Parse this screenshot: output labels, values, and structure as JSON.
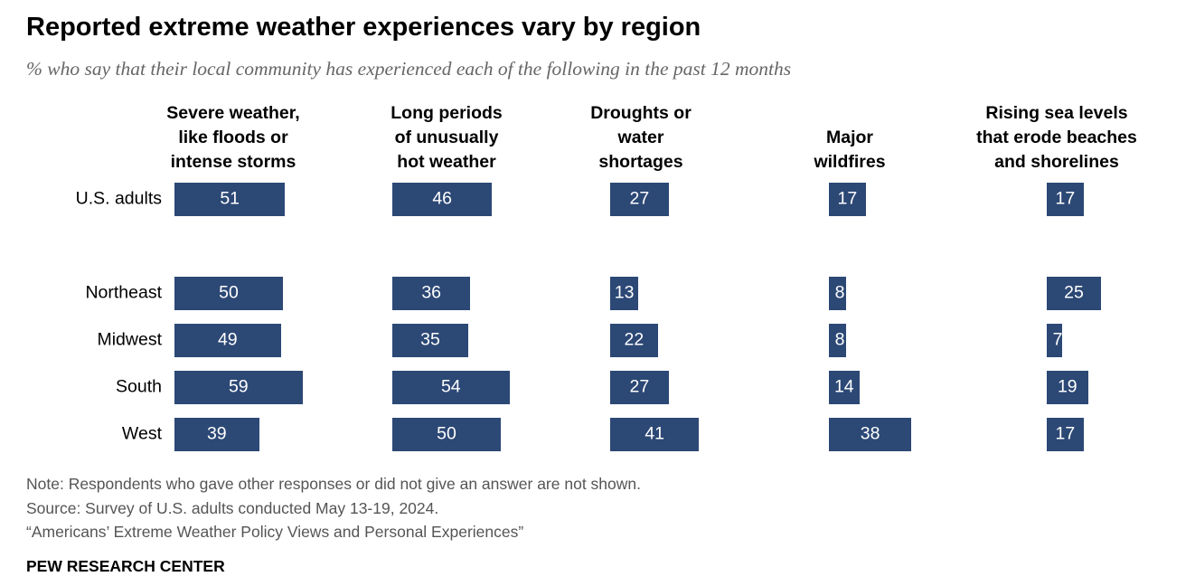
{
  "title": "Reported extreme weather experiences vary by region",
  "subtitle": "% who say that their local community has experienced each of the following in the past 12 months",
  "chart_data": {
    "type": "bar",
    "orientation": "horizontal-small-multiples",
    "categories": [
      "U.S. adults",
      "Northeast",
      "Midwest",
      "South",
      "West"
    ],
    "series": [
      {
        "name": [
          "Severe weather,",
          "like floods or",
          "intense storms"
        ],
        "values": [
          51,
          50,
          49,
          59,
          39
        ]
      },
      {
        "name": [
          "Long periods",
          "of unusually",
          "hot weather"
        ],
        "values": [
          46,
          36,
          35,
          54,
          50
        ]
      },
      {
        "name": [
          "Droughts or",
          "water",
          "shortages"
        ],
        "values": [
          27,
          13,
          22,
          27,
          41
        ]
      },
      {
        "name": [
          "Major",
          "wildfires"
        ],
        "values": [
          17,
          8,
          8,
          14,
          38
        ]
      },
      {
        "name": [
          "Rising sea levels",
          "that erode beaches",
          "and shorelines"
        ],
        "values": [
          17,
          25,
          7,
          19,
          17
        ]
      }
    ],
    "bar_color": "#2c4875",
    "value_label_color": "#ffffff"
  },
  "notes": [
    "Note: Respondents who gave other responses or did not give an answer are not shown.",
    "Source: Survey of U.S. adults conducted May 13-19, 2024.",
    "“Americans’ Extreme Weather Policy Views and Personal Experiences”"
  ],
  "source_org": "PEW RESEARCH CENTER"
}
